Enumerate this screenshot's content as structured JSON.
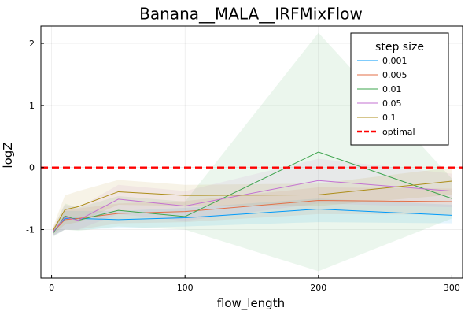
{
  "chart_data": {
    "type": "line",
    "title": "Banana__MALA__IRFMixFlow",
    "xlabel": "flow_length",
    "ylabel": "logZ",
    "xlim": [
      -8,
      308
    ],
    "ylim": [
      -1.78,
      2.28
    ],
    "xticks": [
      0,
      100,
      200,
      300
    ],
    "yticks": [
      -1,
      0,
      1,
      2
    ],
    "grid": true,
    "legend": {
      "title": "step size",
      "placement": "top-right"
    },
    "x": [
      1,
      10,
      20,
      50,
      100,
      200,
      300
    ],
    "series": [
      {
        "name": "0.001",
        "color": "#009AFA",
        "values": [
          -1.05,
          -0.82,
          -0.82,
          -0.84,
          -0.81,
          -0.67,
          -0.77
        ],
        "lower": [
          -1.1,
          -1.0,
          -1.0,
          -0.98,
          -0.95,
          -0.88,
          -0.9
        ],
        "upper": [
          -1.0,
          -0.7,
          -0.7,
          -0.7,
          -0.65,
          -0.5,
          -0.6
        ]
      },
      {
        "name": "0.005",
        "color": "#E36F47",
        "values": [
          -1.04,
          -0.84,
          -0.82,
          -0.74,
          -0.71,
          -0.53,
          -0.55
        ],
        "lower": [
          -1.1,
          -1.0,
          -1.0,
          -0.9,
          -0.88,
          -0.75,
          -0.76
        ],
        "upper": [
          -0.98,
          -0.68,
          -0.66,
          -0.58,
          -0.54,
          -0.32,
          -0.34
        ]
      },
      {
        "name": "0.01",
        "color": "#3EA44E",
        "values": [
          -1.06,
          -0.78,
          -0.85,
          -0.69,
          -0.79,
          0.25,
          -0.5
        ],
        "lower": [
          -1.12,
          -1.0,
          -1.02,
          -0.95,
          -1.0,
          -1.67,
          -0.82
        ],
        "upper": [
          -1.0,
          -0.58,
          -0.65,
          -0.46,
          -0.55,
          2.17,
          -0.18
        ]
      },
      {
        "name": "0.05",
        "color": "#C371D2",
        "values": [
          -1.04,
          -0.8,
          -0.85,
          -0.51,
          -0.62,
          -0.21,
          -0.38
        ],
        "lower": [
          -1.1,
          -1.0,
          -1.0,
          -0.75,
          -0.86,
          -0.58,
          -0.64
        ],
        "upper": [
          -0.98,
          -0.6,
          -0.65,
          -0.28,
          -0.38,
          0.14,
          -0.1
        ]
      },
      {
        "name": "0.1",
        "color": "#AC8D18",
        "values": [
          -1.02,
          -0.68,
          -0.63,
          -0.39,
          -0.45,
          -0.44,
          -0.22
        ],
        "lower": [
          -1.08,
          -0.92,
          -0.88,
          -0.6,
          -0.62,
          -0.62,
          -0.44
        ],
        "upper": [
          -0.96,
          -0.45,
          -0.38,
          -0.2,
          -0.28,
          -0.26,
          0.0
        ]
      }
    ],
    "reference_line": {
      "name": "optimal",
      "y": 0,
      "color": "#FF0000",
      "style": "dashed"
    }
  }
}
